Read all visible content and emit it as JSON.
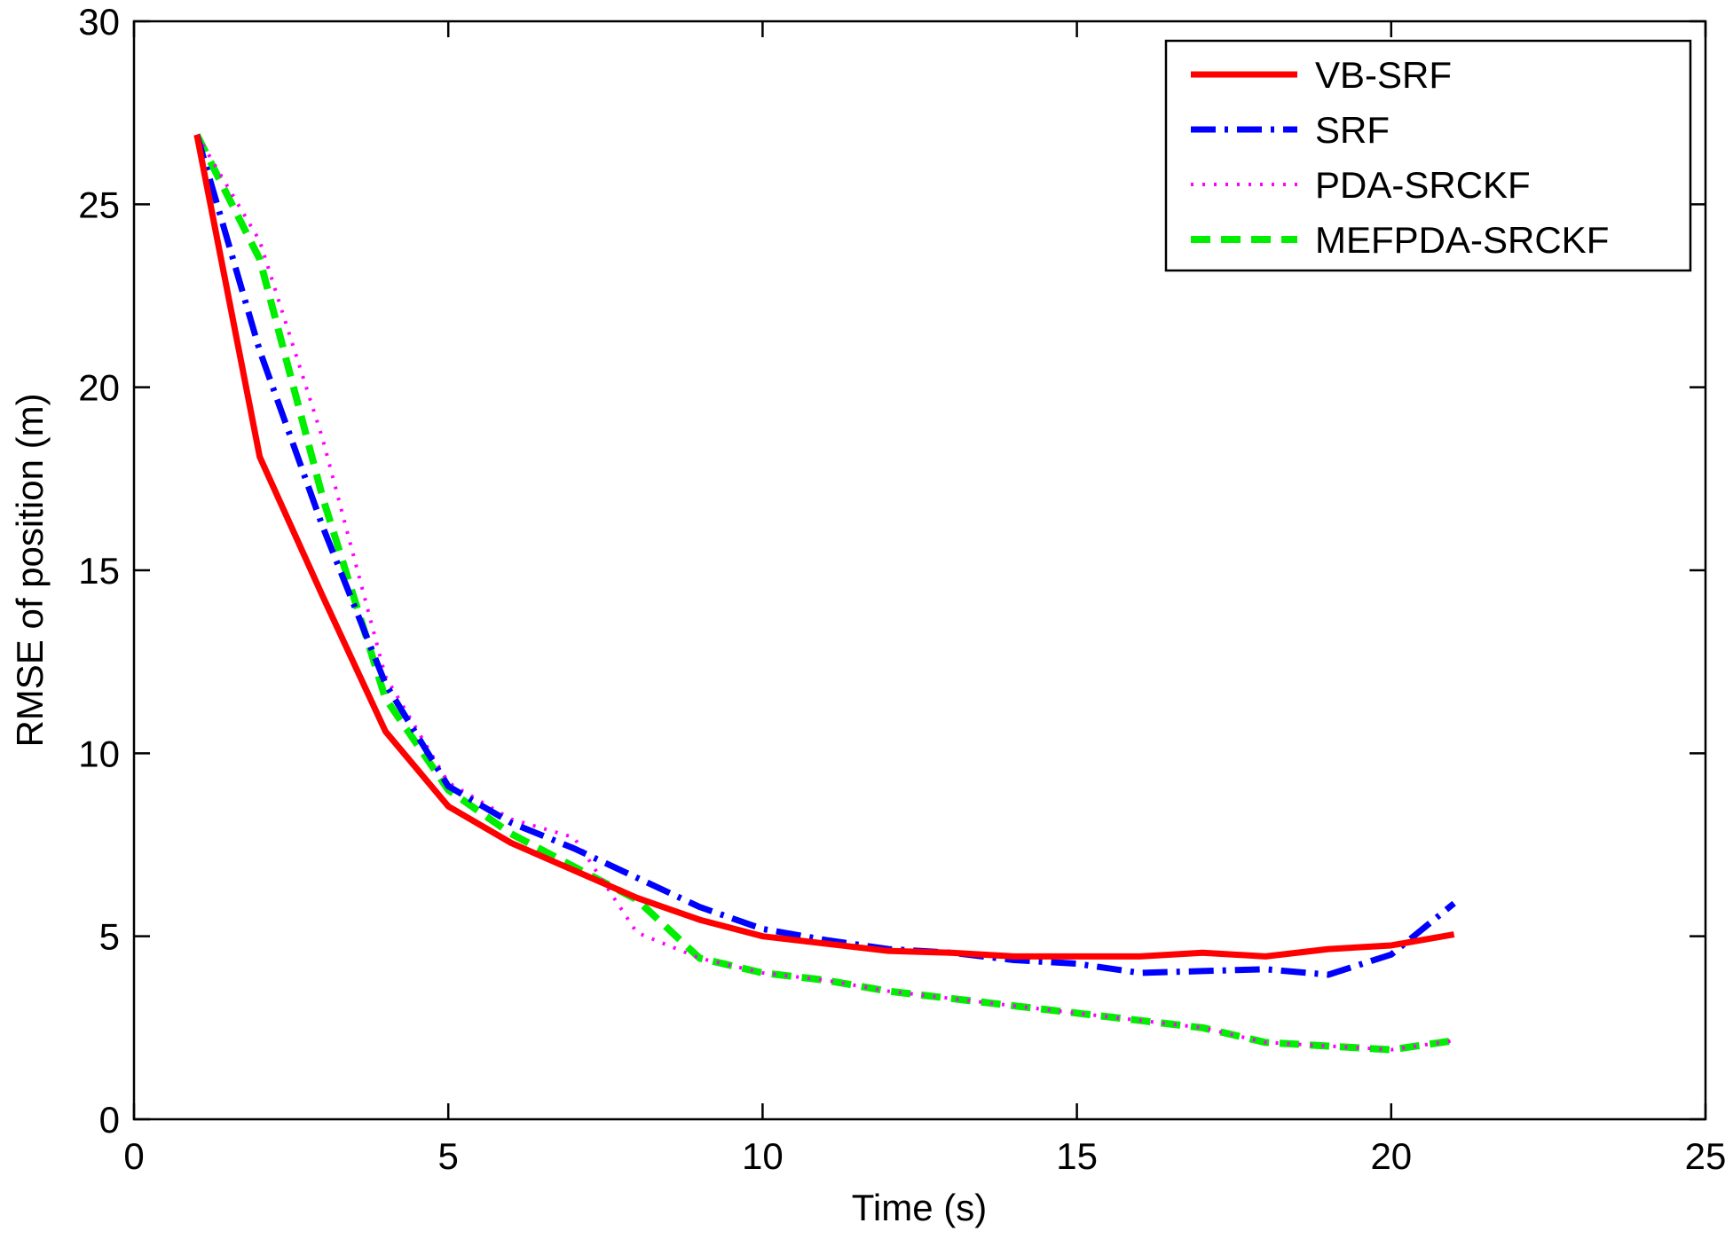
{
  "chart_data": {
    "type": "line",
    "title": "",
    "xlabel": "Time (s)",
    "ylabel": "RMSE of position (m)",
    "xlim": [
      0,
      25
    ],
    "ylim": [
      0,
      30
    ],
    "xticks": [
      0,
      5,
      10,
      15,
      20,
      25
    ],
    "yticks": [
      0,
      5,
      10,
      15,
      20,
      25,
      30
    ],
    "xtick_labels": [
      "0",
      "5",
      "10",
      "15",
      "20",
      "25"
    ],
    "ytick_labels": [
      "0",
      "5",
      "10",
      "15",
      "20",
      "25",
      "30"
    ],
    "grid": false,
    "legend_position": "top-right",
    "x": [
      1,
      2,
      3,
      4,
      5,
      6,
      7,
      8,
      9,
      10,
      11,
      12,
      13,
      14,
      15,
      16,
      17,
      18,
      19,
      20,
      21
    ],
    "series": [
      {
        "name": "VB-SRF",
        "color": "#ff0000",
        "style": "solid",
        "values": [
          26.9,
          18.1,
          14.3,
          10.6,
          8.55,
          7.55,
          6.8,
          6.05,
          5.45,
          5.0,
          4.8,
          4.6,
          4.55,
          4.45,
          4.45,
          4.45,
          4.55,
          4.45,
          4.65,
          4.75,
          5.05
        ]
      },
      {
        "name": "SRF",
        "color": "#0000ff",
        "style": "dashdot",
        "values": [
          26.9,
          21.0,
          16.2,
          11.9,
          9.1,
          8.1,
          7.4,
          6.6,
          5.8,
          5.2,
          4.9,
          4.65,
          4.55,
          4.35,
          4.25,
          4.0,
          4.05,
          4.1,
          3.95,
          4.5,
          5.9
        ]
      },
      {
        "name": "PDA-SRCKF",
        "color": "#ff00ff",
        "style": "dotted",
        "values": [
          26.9,
          24.0,
          18.6,
          12.1,
          9.2,
          8.2,
          7.7,
          5.1,
          4.4,
          4.0,
          3.8,
          3.5,
          3.3,
          3.1,
          2.9,
          2.7,
          2.5,
          2.1,
          2.0,
          1.9,
          2.15
        ]
      },
      {
        "name": "MEFPDA-SRCKF",
        "color": "#00ee00",
        "style": "dashed",
        "values": [
          26.9,
          23.5,
          17.0,
          11.5,
          9.0,
          7.8,
          6.9,
          6.0,
          4.4,
          4.0,
          3.8,
          3.5,
          3.3,
          3.1,
          2.9,
          2.7,
          2.5,
          2.1,
          2.0,
          1.9,
          2.15
        ]
      }
    ]
  }
}
